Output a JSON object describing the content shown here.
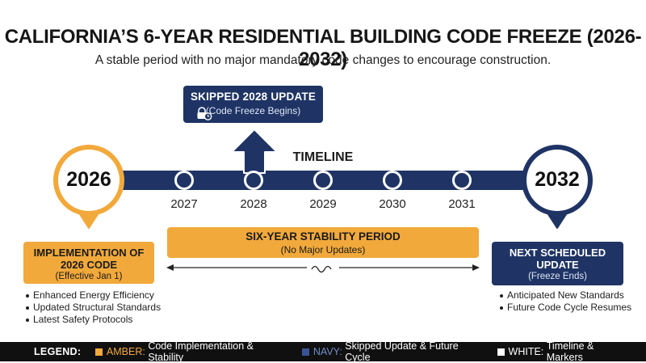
{
  "header": {
    "title": "CALIFORNIA’S 6-YEAR RESIDENTIAL BUILDING CODE FREEZE (2026-2032)",
    "subtitle": "A stable period with no major mandatory code changes to encourage construction."
  },
  "skipped_update": {
    "title": "SKIPPED 2028 UPDATE",
    "subtitle": "(Code Freeze Begins)",
    "icon": "padlock-clock-icon"
  },
  "timeline": {
    "label": "TIMELINE",
    "start_year": "2026",
    "end_year": "2032",
    "markers": [
      "2027",
      "2028",
      "2029",
      "2030",
      "2031"
    ]
  },
  "implementation": {
    "title_line1": "IMPLEMENTATION OF",
    "title_line2": "2026 CODE",
    "subtitle": "(Effective Jan 1)",
    "bullets": [
      "Enhanced Energy Efficiency",
      "Updated Structural Standards",
      "Latest Safety Protocols"
    ]
  },
  "stability": {
    "title": "SIX-YEAR STABILITY PERIOD",
    "subtitle": "(No Major Updates)"
  },
  "next_update": {
    "title_line1": "NEXT SCHEDULED",
    "title_line2": "UPDATE",
    "subtitle": "(Freeze Ends)",
    "bullets": [
      "Anticipated New Standards",
      "Future Code Cycle Resumes"
    ]
  },
  "legend": {
    "lead": "LEGEND:",
    "items": [
      {
        "key": "AMBER:",
        "text": "Code Implementation & Stability",
        "color": "#f2a93b"
      },
      {
        "key": "NAVY:",
        "text": "Skipped Update & Future Cycle",
        "color": "#3a5596"
      },
      {
        "key": "WHITE:",
        "text": "Timeline & Markers",
        "color": "#ffffff"
      }
    ]
  },
  "colors": {
    "amber": "#f2a93b",
    "navy": "#1f3465"
  }
}
